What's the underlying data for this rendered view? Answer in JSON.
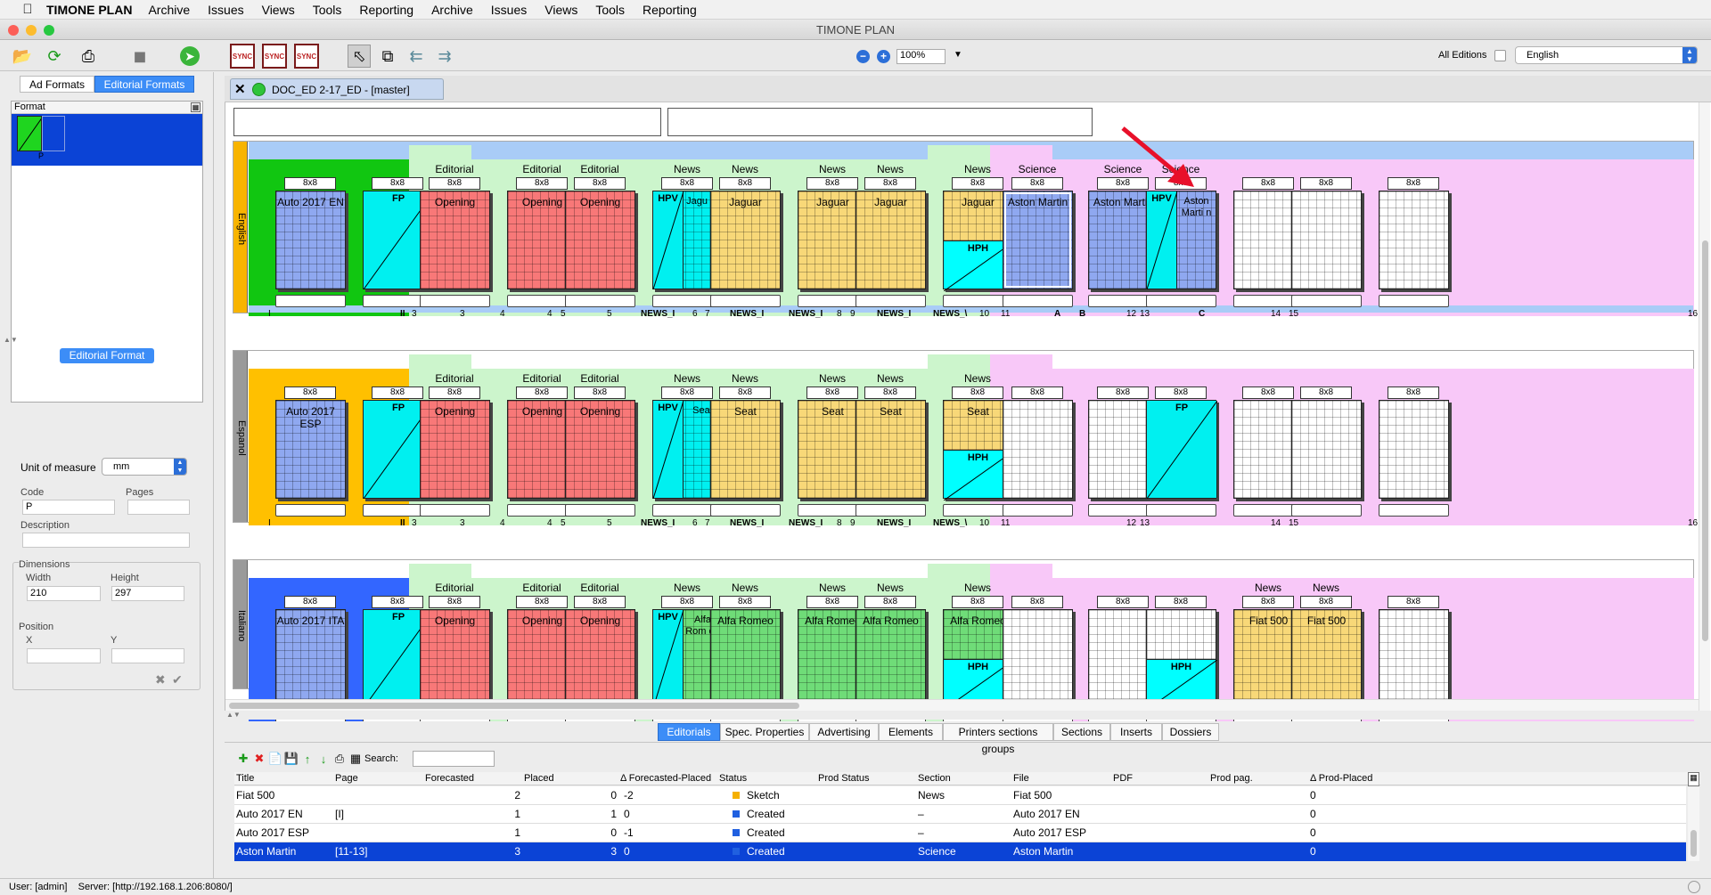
{
  "menu": {
    "appname": "TIMONE PLAN",
    "items": [
      "Archive",
      "Issues",
      "Views",
      "Tools",
      "Reporting",
      "Archive",
      "Issues",
      "Views",
      "Tools",
      "Reporting"
    ]
  },
  "window": {
    "title": "TIMONE PLAN"
  },
  "toolbar": {
    "zoom": "100%",
    "editions_label": "All Editions",
    "language": "English",
    "sync_label": "SYNC"
  },
  "left": {
    "tab_ad": "Ad Formats",
    "tab_ed": "Editorial Formats",
    "format_header": "Format",
    "format_code": "P",
    "panel_title": "Editorial Format",
    "unit_label": "Unit of measure",
    "unit_value": "mm",
    "code_label": "Code",
    "code_value": "P",
    "pages_label": "Pages",
    "desc_label": "Description",
    "dims_label": "Dimensions",
    "width_label": "Width",
    "width_value": "210",
    "height_label": "Height",
    "height_value": "297",
    "pos_label": "Position",
    "x_label": "X",
    "y_label": "Y"
  },
  "doc": {
    "tab": "DOC_ED 2-17_ED - [master]"
  },
  "colors": {
    "blue": "#8fa8f0",
    "cyan": "#00f0f0",
    "red": "#f87878",
    "yellow": "#f8d878",
    "green": "#6fdc78",
    "lightgreen": "#ccf5cc",
    "pink": "#f8c8f8",
    "white": "#ffffff"
  },
  "rows": [
    {
      "lang": "English",
      "sec_color": "#11c611",
      "gutter": "#f8b400",
      "pages": [
        {
          "x": 30,
          "f": "8x8",
          "t": "Auto 2017 EN",
          "c": "blue"
        },
        {
          "x": 128,
          "f": "8x8",
          "t": "FP",
          "c": "cyan",
          "diag": 1
        },
        {
          "x": 192,
          "f": "8x8",
          "t": "Opening",
          "c": "red",
          "sn": "Editorial"
        },
        {
          "x": 290,
          "f": "8x8",
          "t": "Opening",
          "c": "red",
          "sn": "Editorial"
        },
        {
          "x": 355,
          "f": "8x8",
          "t": "Opening",
          "c": "red",
          "sn": "Editorial",
          "snx": 1
        },
        {
          "x": 453,
          "f": "8x8",
          "t": "HPV",
          "c": "cyan",
          "diag": 1,
          "half": "Jagu ar",
          "sn": "News"
        },
        {
          "x": 518,
          "f": "8x8",
          "t": "Jaguar",
          "c": "yellow",
          "sn": "News"
        },
        {
          "x": 616,
          "f": "8x8",
          "t": "Jaguar",
          "c": "yellow",
          "sn": "News"
        },
        {
          "x": 681,
          "f": "8x8",
          "t": "Jaguar",
          "c": "yellow",
          "sn": "News"
        },
        {
          "x": 779,
          "f": "8x8",
          "t": "Jaguar",
          "c": "yellow",
          "sn": "News",
          "hph": "HPH"
        },
        {
          "x": 846,
          "f": "8x8",
          "t": "Aston Martin",
          "c": "blue",
          "sn": "Science",
          "sel": 1
        },
        {
          "x": 942,
          "f": "8x8",
          "t": "Aston Martin",
          "c": "blue",
          "sn": "Science"
        },
        {
          "x": 1007,
          "f": "8x8",
          "t": "HPV",
          "c": "cyan",
          "diag": 1,
          "half": "Aston Marti n",
          "sn": "Science",
          "hc": "blue"
        },
        {
          "x": 1105,
          "f": "8x8",
          "t": "",
          "c": "white"
        },
        {
          "x": 1170,
          "f": "8x8",
          "t": "",
          "c": "white"
        },
        {
          "x": 1268,
          "f": "8x8",
          "t": "",
          "c": "white"
        }
      ],
      "pn": [
        "I",
        "II",
        "3",
        "3",
        "4",
        "4",
        "5",
        "5",
        "NEWS_I",
        "6",
        "7",
        "NEWS_I",
        "NEWS_I",
        "8",
        "9",
        "NEWS_I",
        "NEWS_\\",
        "10",
        "11",
        "A",
        "B",
        "12",
        "13",
        "C",
        "14",
        "15",
        "16"
      ]
    },
    {
      "lang": "Espanol",
      "sec_color": "#ffc000",
      "gutter": "#9a9a9a",
      "pages": [
        {
          "x": 30,
          "f": "8x8",
          "t": "Auto 2017 ESP",
          "c": "blue"
        },
        {
          "x": 128,
          "f": "8x8",
          "t": "FP",
          "c": "cyan",
          "diag": 1
        },
        {
          "x": 192,
          "f": "8x8",
          "t": "Opening",
          "c": "red",
          "sn": "Editorial"
        },
        {
          "x": 290,
          "f": "8x8",
          "t": "Opening",
          "c": "red",
          "sn": "Editorial"
        },
        {
          "x": 355,
          "f": "8x8",
          "t": "Opening",
          "c": "red",
          "sn": "Editorial"
        },
        {
          "x": 453,
          "f": "8x8",
          "t": "HPV",
          "c": "cyan",
          "diag": 1,
          "half": "Seat",
          "sn": "News"
        },
        {
          "x": 518,
          "f": "8x8",
          "t": "Seat",
          "c": "yellow",
          "sn": "News"
        },
        {
          "x": 616,
          "f": "8x8",
          "t": "Seat",
          "c": "yellow",
          "sn": "News"
        },
        {
          "x": 681,
          "f": "8x8",
          "t": "Seat",
          "c": "yellow",
          "sn": "News"
        },
        {
          "x": 779,
          "f": "8x8",
          "t": "Seat",
          "c": "yellow",
          "sn": "News",
          "hph": "HPH"
        },
        {
          "x": 846,
          "f": "8x8",
          "t": "",
          "c": "white"
        },
        {
          "x": 942,
          "f": "8x8",
          "t": "",
          "c": "white"
        },
        {
          "x": 1007,
          "f": "8x8",
          "t": "FP",
          "c": "cyan",
          "diag": 1
        },
        {
          "x": 1105,
          "f": "8x8",
          "t": "",
          "c": "white"
        },
        {
          "x": 1170,
          "f": "8x8",
          "t": "",
          "c": "white"
        },
        {
          "x": 1268,
          "f": "8x8",
          "t": "",
          "c": "white"
        }
      ],
      "pn": [
        "I",
        "II",
        "3",
        "3",
        "4",
        "4",
        "5",
        "5",
        "NEWS_I",
        "6",
        "7",
        "NEWS_I",
        "NEWS_I",
        "8",
        "9",
        "NEWS_I",
        "NEWS_\\",
        "10",
        "11",
        "",
        "",
        "12",
        "13",
        "",
        "14",
        "15",
        "16"
      ]
    },
    {
      "lang": "Italiano",
      "sec_color": "#3366ff",
      "gutter": "#9a9a9a",
      "pages": [
        {
          "x": 30,
          "f": "8x8",
          "t": "Auto 2017 ITA",
          "c": "blue"
        },
        {
          "x": 128,
          "f": "8x8",
          "t": "FP",
          "c": "cyan",
          "diag": 1
        },
        {
          "x": 192,
          "f": "8x8",
          "t": "Opening",
          "c": "red",
          "sn": "Editorial"
        },
        {
          "x": 290,
          "f": "8x8",
          "t": "Opening",
          "c": "red",
          "sn": "Editorial"
        },
        {
          "x": 355,
          "f": "8x8",
          "t": "Opening",
          "c": "red",
          "sn": "Editorial"
        },
        {
          "x": 453,
          "f": "8x8",
          "t": "HPV",
          "c": "cyan",
          "diag": 1,
          "half": "Alfa Rom eo",
          "sn": "News",
          "hc": "green"
        },
        {
          "x": 518,
          "f": "8x8",
          "t": "Alfa Romeo",
          "c": "green",
          "sn": "News"
        },
        {
          "x": 616,
          "f": "8x8",
          "t": "Alfa Romeo",
          "c": "green",
          "sn": "News"
        },
        {
          "x": 681,
          "f": "8x8",
          "t": "Alfa Romeo",
          "c": "green",
          "sn": "News"
        },
        {
          "x": 779,
          "f": "8x8",
          "t": "Alfa Romeo",
          "c": "green",
          "sn": "News",
          "hph": "HPH"
        },
        {
          "x": 846,
          "f": "8x8",
          "t": "",
          "c": "white"
        },
        {
          "x": 942,
          "f": "8x8",
          "t": "",
          "c": "white"
        },
        {
          "x": 1007,
          "f": "8x8",
          "t": "",
          "c": "white",
          "hph": "HPH"
        },
        {
          "x": 1105,
          "f": "8x8",
          "t": "Fiat 500",
          "c": "yellow",
          "sn": "News"
        },
        {
          "x": 1170,
          "f": "8x8",
          "t": "Fiat 500",
          "c": "yellow",
          "sn": "News"
        },
        {
          "x": 1268,
          "f": "8x8",
          "t": "",
          "c": "white"
        }
      ],
      "pn": []
    }
  ],
  "bottom": {
    "tabs": [
      "Editorials",
      "Spec. Properties",
      "Advertising",
      "Elements",
      "Printers sections groups",
      "Sections",
      "Inserts",
      "Dossiers"
    ],
    "search_label": "Search:"
  },
  "table": {
    "headers": [
      "Title",
      "Page",
      "Forecasted",
      "Placed",
      "Δ Forecasted-Placed",
      "Status",
      "Prod Status",
      "Section",
      "File",
      "PDF",
      "Prod pag.",
      "Δ Prod-Placed"
    ],
    "rows": [
      {
        "title": "Fiat 500",
        "page": "",
        "fc": "2",
        "pl": "0",
        "d": "-2",
        "status": "Sketch",
        "sc": "#f5b000",
        "section": "News",
        "file": "Fiat 500",
        "dp": "0"
      },
      {
        "title": "Auto 2017 EN",
        "page": "[I]",
        "fc": "1",
        "pl": "1",
        "d": "0",
        "status": "Created",
        "sc": "#2060e0",
        "section": "–",
        "file": "Auto 2017 EN",
        "dp": "0"
      },
      {
        "title": "Auto 2017 ESP",
        "page": "",
        "fc": "1",
        "pl": "0",
        "d": "-1",
        "status": "Created",
        "sc": "#2060e0",
        "section": "–",
        "file": "Auto 2017 ESP",
        "dp": "0"
      },
      {
        "title": "Aston Martin",
        "page": "[11-13]",
        "fc": "3",
        "pl": "3",
        "d": "0",
        "status": "Created",
        "sc": "#2060e0",
        "section": "Science",
        "file": "Aston Martin",
        "dp": "0",
        "sel": true
      }
    ]
  },
  "status": {
    "user": "User: [admin]",
    "server": "Server: [http://192.168.1.206:8080/]"
  }
}
